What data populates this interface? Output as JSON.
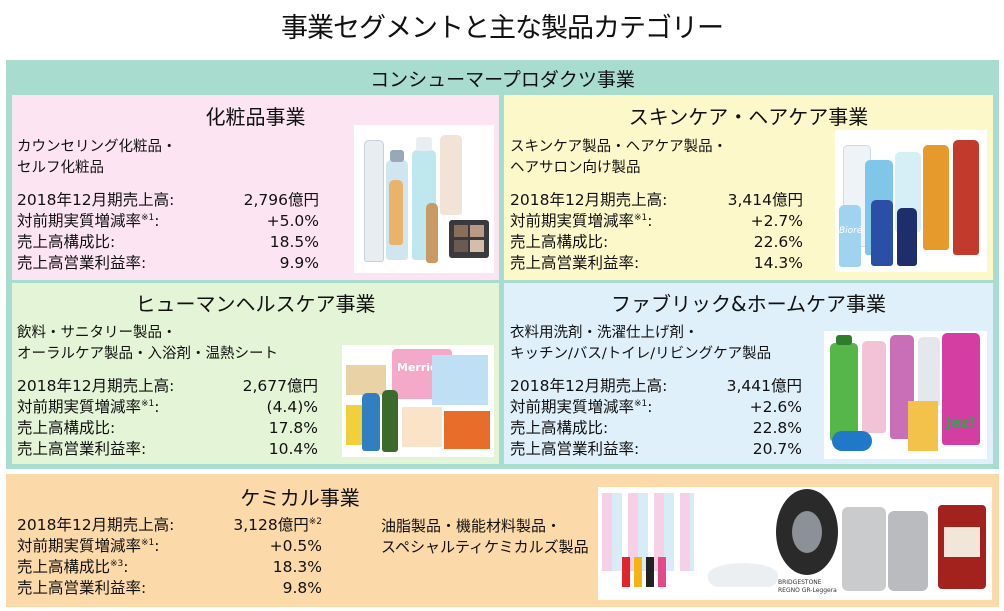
{
  "page_title": "事業セグメントと主な製品カテゴリー",
  "consumer": {
    "heading": "コンシューマープロダクツ事業",
    "segments": {
      "cosmetics": {
        "title": "化粧品事業",
        "categories": [
          "カウンセリング化粧品・",
          "セルフ化粧品"
        ],
        "stats": [
          {
            "label": "2018年12月期売上高:",
            "note": "",
            "value": "2,796億円",
            "value_note": ""
          },
          {
            "label": "対前期実質増減率",
            "note": "※1",
            "label_suffix": ":",
            "value": "+5.0%",
            "value_note": ""
          },
          {
            "label": "売上高構成比:",
            "note": "",
            "value": "18.5%",
            "value_note": ""
          },
          {
            "label": "売上高営業利益率:",
            "note": "",
            "value": "9.9%",
            "value_note": ""
          }
        ]
      },
      "skincare": {
        "title": "スキンケア・ヘアケア事業",
        "categories": [
          "スキンケア製品・ヘアケア製品・",
          "ヘアサロン向け製品"
        ],
        "stats": [
          {
            "label": "2018年12月期売上高:",
            "note": "",
            "value": "3,414億円",
            "value_note": ""
          },
          {
            "label": "対前期実質増減率",
            "note": "※1",
            "label_suffix": ":",
            "value": "+2.7%",
            "value_note": ""
          },
          {
            "label": "売上高構成比:",
            "note": "",
            "value": "22.6%",
            "value_note": ""
          },
          {
            "label": "売上高営業利益率:",
            "note": "",
            "value": "14.3%",
            "value_note": ""
          }
        ]
      },
      "healthcare": {
        "title": "ヒューマンヘルスケア事業",
        "categories": [
          "飲料・サニタリー製品・",
          "オーラルケア製品・入浴剤・温熱シート"
        ],
        "stats": [
          {
            "label": "2018年12月期売上高:",
            "note": "",
            "value": "2,677億円",
            "value_note": ""
          },
          {
            "label": "対前期実質増減率",
            "note": "※1",
            "label_suffix": ":",
            "value": "(4.4)%",
            "value_note": ""
          },
          {
            "label": "売上高構成比:",
            "note": "",
            "value": "17.8%",
            "value_note": ""
          },
          {
            "label": "売上高営業利益率:",
            "note": "",
            "value": "10.4%",
            "value_note": ""
          }
        ]
      },
      "fabric": {
        "title": "ファブリック&ホームケア事業",
        "categories": [
          "衣料用洗剤・洗濯仕上げ剤・",
          "キッチン/バス/トイレ/リビングケア製品"
        ],
        "stats": [
          {
            "label": "2018年12月期売上高:",
            "note": "",
            "value": "3,441億円",
            "value_note": ""
          },
          {
            "label": "対前期実質増減率",
            "note": "※1",
            "label_suffix": ":",
            "value": "+2.6%",
            "value_note": ""
          },
          {
            "label": "売上高構成比:",
            "note": "",
            "value": "22.8%",
            "value_note": ""
          },
          {
            "label": "売上高営業利益率:",
            "note": "",
            "value": "20.7%",
            "value_note": ""
          }
        ]
      }
    }
  },
  "chemical": {
    "title": "ケミカル事業",
    "categories": [
      "油脂製品・機能材料製品・",
      "スペシャルティケミカルズ製品"
    ],
    "stats": [
      {
        "label": "2018年12月期売上高:",
        "note": "",
        "value": "3,128億円",
        "value_note": "※2"
      },
      {
        "label": "対前期実質増減率",
        "note": "※1",
        "label_suffix": ":",
        "value": "+0.5%",
        "value_note": ""
      },
      {
        "label": "売上高構成比",
        "note": "※3",
        "label_suffix": ":",
        "value": "18.3%",
        "value_note": ""
      },
      {
        "label": "売上高営業利益率:",
        "note": "",
        "value": "9.8%",
        "value_note": ""
      }
    ],
    "photo_text": [
      "BRIDGESTONE",
      "REGNO GR-Leggera"
    ]
  },
  "product_labels": {
    "merries": "Merries",
    "jaz": "Jaz!",
    "biore": "Bioré"
  },
  "colors": {
    "consumer_bg": "#a8dccf",
    "cosmetics_bg": "#fde4f2",
    "skincare_bg": "#fcf8c9",
    "healthcare_bg": "#e4f4d6",
    "fabric_bg": "#dff0fb",
    "chemical_bg": "#fcd9a8"
  }
}
